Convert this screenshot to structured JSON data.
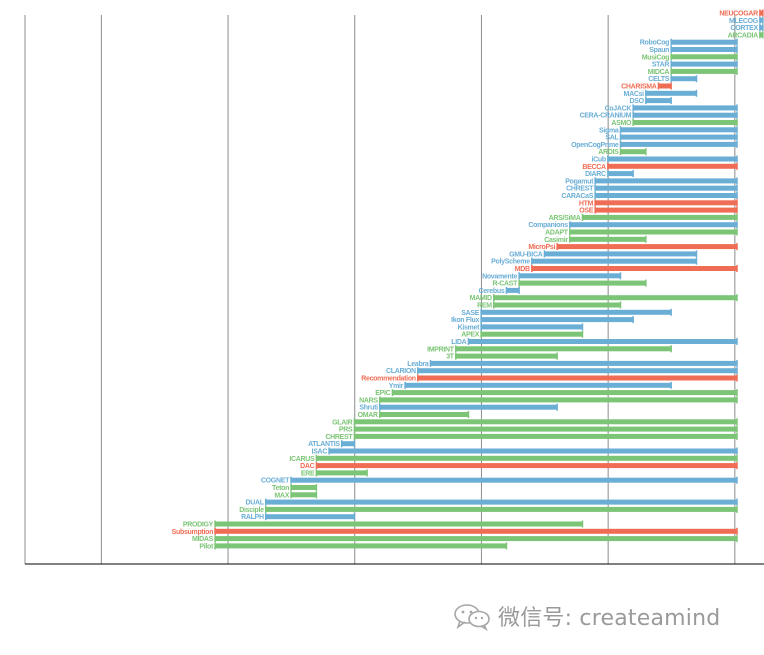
{
  "chart_data": {
    "type": "bar",
    "subtype": "timeline-range",
    "grid": true,
    "colors": {
      "symbolic": "#6aaed6",
      "emergent": "#f06d55",
      "hybrid": "#7cc576",
      "axis": "#777777",
      "grid": "#8c8c8c"
    },
    "x_domain": [
      1955,
      2016
    ],
    "grid_years": [
      1960,
      1970,
      1980,
      1990,
      2000,
      2010
    ],
    "items": [
      {
        "name": "NEUCOGAR",
        "kind": "emergent",
        "start": 2013,
        "end": 2014
      },
      {
        "name": "MLECOG",
        "kind": "symbolic",
        "start": 2013,
        "end": 2014
      },
      {
        "name": "CORTEX",
        "kind": "symbolic",
        "start": 2013,
        "end": 2014
      },
      {
        "name": "ARCADIA",
        "kind": "hybrid",
        "start": 2013,
        "end": 2014
      },
      {
        "name": "RoboCog",
        "kind": "symbolic",
        "start": 2006,
        "end": 2014
      },
      {
        "name": "Spaun",
        "kind": "symbolic",
        "start": 2006,
        "end": 2014
      },
      {
        "name": "MusiCog",
        "kind": "hybrid",
        "start": 2006,
        "end": 2014
      },
      {
        "name": "STAR",
        "kind": "symbolic",
        "start": 2006,
        "end": 2014
      },
      {
        "name": "MIDCA",
        "kind": "hybrid",
        "start": 2006,
        "end": 2014
      },
      {
        "name": "CELTS",
        "kind": "symbolic",
        "start": 2006,
        "end": 2008
      },
      {
        "name": "CHARISMA",
        "kind": "emergent",
        "start": 2005,
        "end": 2006
      },
      {
        "name": "MACsi",
        "kind": "symbolic",
        "start": 2004,
        "end": 2008
      },
      {
        "name": "DSO",
        "kind": "symbolic",
        "start": 2004,
        "end": 2006
      },
      {
        "name": "CoJACK",
        "kind": "symbolic",
        "start": 2003,
        "end": 2014
      },
      {
        "name": "CERA-CRANIUM",
        "kind": "symbolic",
        "start": 2003,
        "end": 2014
      },
      {
        "name": "ASMO",
        "kind": "hybrid",
        "start": 2003,
        "end": 2014
      },
      {
        "name": "Sigma",
        "kind": "symbolic",
        "start": 2002,
        "end": 2014
      },
      {
        "name": "SAL",
        "kind": "symbolic",
        "start": 2002,
        "end": 2014
      },
      {
        "name": "OpenCogPrime",
        "kind": "symbolic",
        "start": 2002,
        "end": 2014
      },
      {
        "name": "ARDIS",
        "kind": "hybrid",
        "start": 2002,
        "end": 2004
      },
      {
        "name": "iCub",
        "kind": "symbolic",
        "start": 2001,
        "end": 2014
      },
      {
        "name": "BECCA",
        "kind": "emergent",
        "start": 2001,
        "end": 2014
      },
      {
        "name": "DIARC",
        "kind": "symbolic",
        "start": 2001,
        "end": 2003
      },
      {
        "name": "Pogamut",
        "kind": "symbolic",
        "start": 2000,
        "end": 2014
      },
      {
        "name": "CHREST",
        "kind": "symbolic",
        "start": 2000,
        "end": 2014
      },
      {
        "name": "CARACaS",
        "kind": "symbolic",
        "start": 2000,
        "end": 2014
      },
      {
        "name": "HTM",
        "kind": "emergent",
        "start": 2000,
        "end": 2014
      },
      {
        "name": "OSE",
        "kind": "emergent",
        "start": 2000,
        "end": 2014
      },
      {
        "name": "ARS/SiMA",
        "kind": "hybrid",
        "start": 1999,
        "end": 2014
      },
      {
        "name": "Companions",
        "kind": "symbolic",
        "start": 1998,
        "end": 2014
      },
      {
        "name": "ADAPT",
        "kind": "hybrid",
        "start": 1998,
        "end": 2014
      },
      {
        "name": "Casimir",
        "kind": "hybrid",
        "start": 1998,
        "end": 2004
      },
      {
        "name": "MicroPsi",
        "kind": "emergent",
        "start": 1997,
        "end": 2014
      },
      {
        "name": "GMU-BICA",
        "kind": "symbolic",
        "start": 1996,
        "end": 2008
      },
      {
        "name": "PolyScheme",
        "kind": "symbolic",
        "start": 1995,
        "end": 2008
      },
      {
        "name": "MDB",
        "kind": "emergent",
        "start": 1995,
        "end": 2014
      },
      {
        "name": "Novamente",
        "kind": "symbolic",
        "start": 1994,
        "end": 2002
      },
      {
        "name": "R-CAST",
        "kind": "hybrid",
        "start": 1994,
        "end": 2004
      },
      {
        "name": "Cerebus",
        "kind": "symbolic",
        "start": 1993,
        "end": 1994
      },
      {
        "name": "MAMID",
        "kind": "hybrid",
        "start": 1992,
        "end": 2014
      },
      {
        "name": "REM",
        "kind": "hybrid",
        "start": 1992,
        "end": 2002
      },
      {
        "name": "SASE",
        "kind": "symbolic",
        "start": 1991,
        "end": 2006
      },
      {
        "name": "Ikon Flux",
        "kind": "symbolic",
        "start": 1991,
        "end": 2003
      },
      {
        "name": "Kismet",
        "kind": "symbolic",
        "start": 1991,
        "end": 1999
      },
      {
        "name": "APEX",
        "kind": "hybrid",
        "start": 1991,
        "end": 1999
      },
      {
        "name": "LIDA",
        "kind": "symbolic",
        "start": 1990,
        "end": 2014
      },
      {
        "name": "IMPRINT",
        "kind": "hybrid",
        "start": 1989,
        "end": 2006
      },
      {
        "name": "3T",
        "kind": "hybrid",
        "start": 1989,
        "end": 1997
      },
      {
        "name": "Leabra",
        "kind": "symbolic",
        "start": 1987,
        "end": 2014
      },
      {
        "name": "CLARION",
        "kind": "symbolic",
        "start": 1986,
        "end": 2014
      },
      {
        "name": "Recommendation",
        "kind": "emergent",
        "start": 1986,
        "end": 2014
      },
      {
        "name": "Ymir",
        "kind": "symbolic",
        "start": 1985,
        "end": 2006
      },
      {
        "name": "EPIC",
        "kind": "hybrid",
        "start": 1984,
        "end": 2014
      },
      {
        "name": "NARS",
        "kind": "hybrid",
        "start": 1983,
        "end": 2014
      },
      {
        "name": "Shruti",
        "kind": "symbolic",
        "start": 1983,
        "end": 1997
      },
      {
        "name": "OMAR",
        "kind": "hybrid",
        "start": 1983,
        "end": 1990
      },
      {
        "name": "GLAIR",
        "kind": "hybrid",
        "start": 1981,
        "end": 2014
      },
      {
        "name": "PRS",
        "kind": "hybrid",
        "start": 1981,
        "end": 2014
      },
      {
        "name": "CHREST",
        "kind": "hybrid",
        "start": 1981,
        "end": 2014
      },
      {
        "name": "ATLANTIS",
        "kind": "symbolic",
        "start": 1980,
        "end": 1981
      },
      {
        "name": "ISAC",
        "kind": "symbolic",
        "start": 1979,
        "end": 2014
      },
      {
        "name": "ICARUS",
        "kind": "hybrid",
        "start": 1978,
        "end": 2014
      },
      {
        "name": "DAC",
        "kind": "emergent",
        "start": 1978,
        "end": 2014
      },
      {
        "name": "ERE",
        "kind": "hybrid",
        "start": 1978,
        "end": 1982
      },
      {
        "name": "COGNET",
        "kind": "symbolic",
        "start": 1976,
        "end": 2014
      },
      {
        "name": "Teton",
        "kind": "hybrid",
        "start": 1976,
        "end": 1978
      },
      {
        "name": "MAX",
        "kind": "hybrid",
        "start": 1976,
        "end": 1978
      },
      {
        "name": "DUAL",
        "kind": "symbolic",
        "start": 1974,
        "end": 2014
      },
      {
        "name": "Disciple",
        "kind": "hybrid",
        "start": 1974,
        "end": 2014
      },
      {
        "name": "RALPH",
        "kind": "symbolic",
        "start": 1974,
        "end": 1981
      },
      {
        "name": "PRODIGY",
        "kind": "hybrid",
        "start": 1970,
        "end": 1999
      },
      {
        "name": "Subsumption",
        "kind": "emergent",
        "start": 1970,
        "end": 2014
      },
      {
        "name": "MIDAS",
        "kind": "hybrid",
        "start": 1970,
        "end": 2014
      },
      {
        "name": "Pilot",
        "kind": "hybrid",
        "start": 1970,
        "end": 1993
      }
    ]
  },
  "watermark": {
    "icon": "wechat-icon",
    "text": "微信号: createamind"
  }
}
